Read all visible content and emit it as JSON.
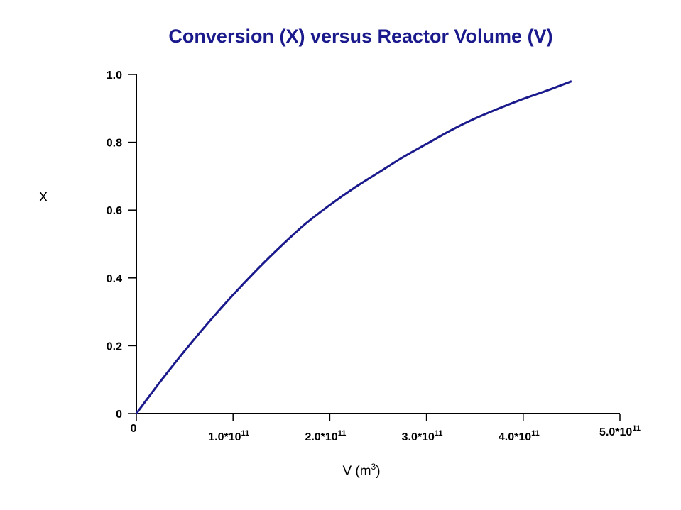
{
  "chart_data": {
    "type": "line",
    "title": "Conversion (X) versus Reactor Volume (V)",
    "ylabel": "X",
    "xlabel_base": "V (m",
    "xlabel_sup": "3",
    "xlabel_tail": ")",
    "xlim": [
      0,
      500000000000.0
    ],
    "ylim": [
      0,
      1.0
    ],
    "x_ticks": [
      {
        "value": 0,
        "base": "0",
        "sup": ""
      },
      {
        "value": 100000000000.0,
        "base": "1.0*10",
        "sup": "11"
      },
      {
        "value": 200000000000.0,
        "base": "2.0*10",
        "sup": "11"
      },
      {
        "value": 300000000000.0,
        "base": "3.0*10",
        "sup": "11"
      },
      {
        "value": 400000000000.0,
        "base": "4.0*10",
        "sup": "11"
      },
      {
        "value": 500000000000.0,
        "base": "5.0*10",
        "sup": "11"
      }
    ],
    "y_ticks": [
      {
        "value": 0,
        "label": "0"
      },
      {
        "value": 0.2,
        "label": "0.2"
      },
      {
        "value": 0.4,
        "label": "0.4"
      },
      {
        "value": 0.6,
        "label": "0.6"
      },
      {
        "value": 0.8,
        "label": "0.8"
      },
      {
        "value": 1.0,
        "label": "1.0"
      }
    ],
    "series": [
      {
        "color": "#1a1a8c",
        "x": [
          0,
          25000000000.0,
          50000000000.0,
          75000000000.0,
          100000000000.0,
          125000000000.0,
          150000000000.0,
          175000000000.0,
          200000000000.0,
          225000000000.0,
          250000000000.0,
          275000000000.0,
          300000000000.0,
          325000000000.0,
          350000000000.0,
          375000000000.0,
          400000000000.0,
          425000000000.0,
          450000000000.0
        ],
        "y": [
          0,
          0.095,
          0.185,
          0.27,
          0.35,
          0.425,
          0.495,
          0.56,
          0.615,
          0.665,
          0.71,
          0.755,
          0.795,
          0.835,
          0.87,
          0.9,
          0.928,
          0.953,
          0.98
        ]
      }
    ],
    "title_color": "#1a1a8c",
    "grid": false
  }
}
